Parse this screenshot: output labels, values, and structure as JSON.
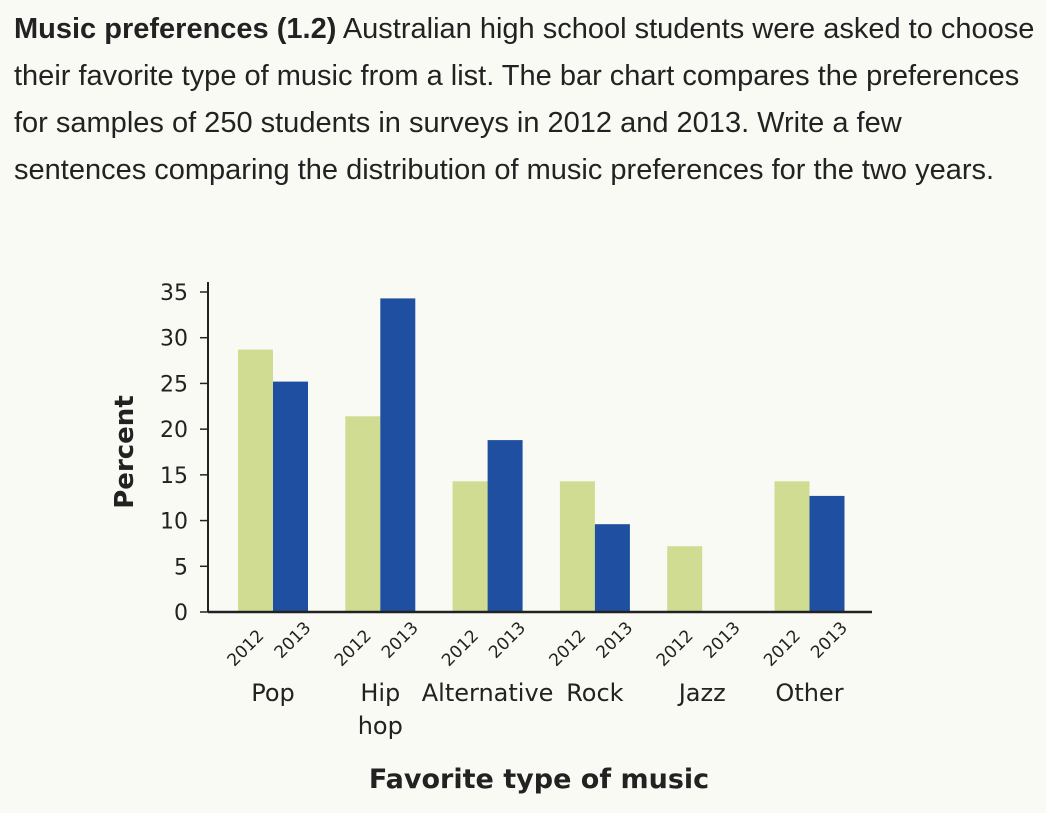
{
  "problem": {
    "title": "Music preferences (1.2)",
    "body": " Australian high school students were asked to choose their favorite type of music from a list. The bar chart compares the preferences for samples of 250 students in surveys in 2012 and 2013. Write a few sentences comparing the distribution of music preferences for the two years."
  },
  "chart_data": {
    "type": "bar",
    "categories": [
      "Pop",
      "Hip hop",
      "Alternative",
      "Rock",
      "Jazz",
      "Other"
    ],
    "category_lines": [
      [
        "Pop"
      ],
      [
        "Hip",
        "hop"
      ],
      [
        "Alternative"
      ],
      [
        "Rock"
      ],
      [
        "Jazz"
      ],
      [
        "Other"
      ]
    ],
    "bar_labels": [
      "2012",
      "2013"
    ],
    "series": [
      {
        "name": "2012",
        "color": "#cfdc92",
        "values": [
          28.7,
          21.4,
          14.3,
          14.3,
          7.2,
          14.3
        ]
      },
      {
        "name": "2013",
        "color": "#1f4fa0",
        "values": [
          25.2,
          34.3,
          18.8,
          9.6,
          0,
          12.7
        ]
      }
    ],
    "xlabel": "Favorite type of music",
    "ylabel": "Percent",
    "ylim": [
      0,
      35
    ],
    "yticks": [
      0,
      5,
      10,
      15,
      20,
      25,
      30,
      35
    ],
    "grid": false,
    "legend": "none"
  }
}
